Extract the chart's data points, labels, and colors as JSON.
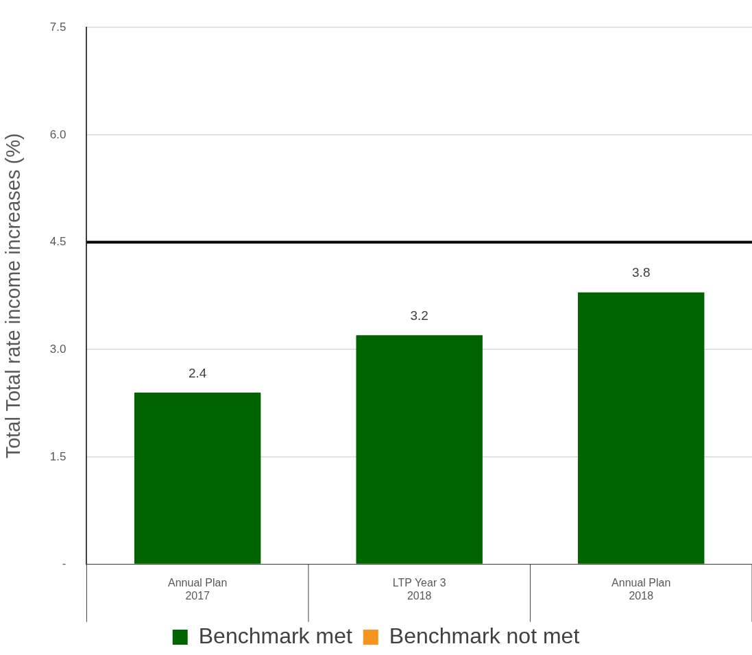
{
  "chart_data": {
    "type": "bar",
    "ylabel": "Total Total rate income increases (%)",
    "categories": [
      "Annual Plan\n2017",
      "LTP Year 3\n2018",
      "Annual Plan\n2018"
    ],
    "series": [
      {
        "name": "Benchmark met",
        "color": "#006400",
        "values": [
          2.4,
          3.2,
          3.8
        ]
      },
      {
        "name": "Benchmark not met",
        "color": "#f7941d",
        "values": [
          null,
          null,
          null
        ]
      }
    ],
    "ylim": [
      0,
      7.5
    ],
    "yticks": [
      {
        "value": 0,
        "label": "-"
      },
      {
        "value": 1.5,
        "label": "1.5"
      },
      {
        "value": 3,
        "label": "3.0"
      },
      {
        "value": 4.5,
        "label": "4.5"
      },
      {
        "value": 6,
        "label": "6.0"
      },
      {
        "value": 7.5,
        "label": "7.5"
      }
    ],
    "ref_lines": [
      {
        "axis": "y",
        "value": 4.5,
        "color": "#000000",
        "line_style": "solid"
      }
    ],
    "data_labels": true,
    "grid": "y",
    "legend": "bottom"
  }
}
